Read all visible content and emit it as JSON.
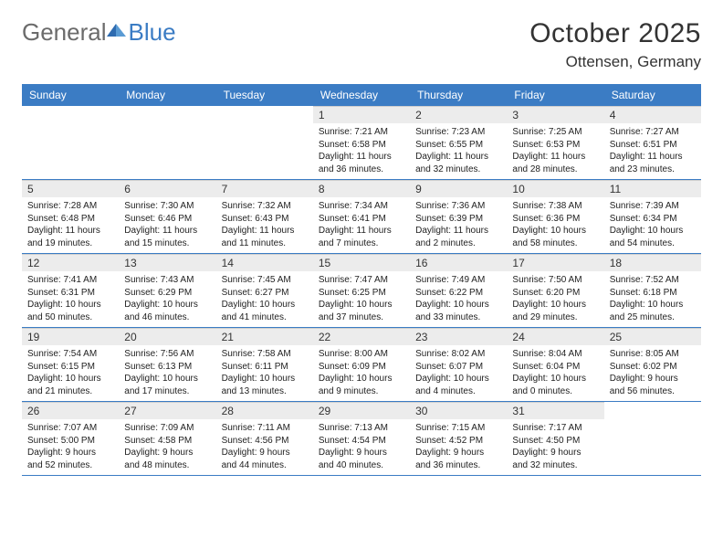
{
  "logo": {
    "general": "General",
    "blue": "Blue"
  },
  "title": "October 2025",
  "location": "Ottensen, Germany",
  "weekdays": [
    "Sunday",
    "Monday",
    "Tuesday",
    "Wednesday",
    "Thursday",
    "Friday",
    "Saturday"
  ],
  "colors": {
    "header_bg": "#3b7cc4",
    "header_text": "#ffffff",
    "daynum_bg": "#ececec",
    "text": "#333333",
    "body_text": "#222222",
    "border": "#3b7cc4"
  },
  "weeks": [
    [
      null,
      null,
      null,
      {
        "d": "1",
        "sr": "7:21 AM",
        "ss": "6:58 PM",
        "dl": "11 hours and 36 minutes."
      },
      {
        "d": "2",
        "sr": "7:23 AM",
        "ss": "6:55 PM",
        "dl": "11 hours and 32 minutes."
      },
      {
        "d": "3",
        "sr": "7:25 AM",
        "ss": "6:53 PM",
        "dl": "11 hours and 28 minutes."
      },
      {
        "d": "4",
        "sr": "7:27 AM",
        "ss": "6:51 PM",
        "dl": "11 hours and 23 minutes."
      }
    ],
    [
      {
        "d": "5",
        "sr": "7:28 AM",
        "ss": "6:48 PM",
        "dl": "11 hours and 19 minutes."
      },
      {
        "d": "6",
        "sr": "7:30 AM",
        "ss": "6:46 PM",
        "dl": "11 hours and 15 minutes."
      },
      {
        "d": "7",
        "sr": "7:32 AM",
        "ss": "6:43 PM",
        "dl": "11 hours and 11 minutes."
      },
      {
        "d": "8",
        "sr": "7:34 AM",
        "ss": "6:41 PM",
        "dl": "11 hours and 7 minutes."
      },
      {
        "d": "9",
        "sr": "7:36 AM",
        "ss": "6:39 PM",
        "dl": "11 hours and 2 minutes."
      },
      {
        "d": "10",
        "sr": "7:38 AM",
        "ss": "6:36 PM",
        "dl": "10 hours and 58 minutes."
      },
      {
        "d": "11",
        "sr": "7:39 AM",
        "ss": "6:34 PM",
        "dl": "10 hours and 54 minutes."
      }
    ],
    [
      {
        "d": "12",
        "sr": "7:41 AM",
        "ss": "6:31 PM",
        "dl": "10 hours and 50 minutes."
      },
      {
        "d": "13",
        "sr": "7:43 AM",
        "ss": "6:29 PM",
        "dl": "10 hours and 46 minutes."
      },
      {
        "d": "14",
        "sr": "7:45 AM",
        "ss": "6:27 PM",
        "dl": "10 hours and 41 minutes."
      },
      {
        "d": "15",
        "sr": "7:47 AM",
        "ss": "6:25 PM",
        "dl": "10 hours and 37 minutes."
      },
      {
        "d": "16",
        "sr": "7:49 AM",
        "ss": "6:22 PM",
        "dl": "10 hours and 33 minutes."
      },
      {
        "d": "17",
        "sr": "7:50 AM",
        "ss": "6:20 PM",
        "dl": "10 hours and 29 minutes."
      },
      {
        "d": "18",
        "sr": "7:52 AM",
        "ss": "6:18 PM",
        "dl": "10 hours and 25 minutes."
      }
    ],
    [
      {
        "d": "19",
        "sr": "7:54 AM",
        "ss": "6:15 PM",
        "dl": "10 hours and 21 minutes."
      },
      {
        "d": "20",
        "sr": "7:56 AM",
        "ss": "6:13 PM",
        "dl": "10 hours and 17 minutes."
      },
      {
        "d": "21",
        "sr": "7:58 AM",
        "ss": "6:11 PM",
        "dl": "10 hours and 13 minutes."
      },
      {
        "d": "22",
        "sr": "8:00 AM",
        "ss": "6:09 PM",
        "dl": "10 hours and 9 minutes."
      },
      {
        "d": "23",
        "sr": "8:02 AM",
        "ss": "6:07 PM",
        "dl": "10 hours and 4 minutes."
      },
      {
        "d": "24",
        "sr": "8:04 AM",
        "ss": "6:04 PM",
        "dl": "10 hours and 0 minutes."
      },
      {
        "d": "25",
        "sr": "8:05 AM",
        "ss": "6:02 PM",
        "dl": "9 hours and 56 minutes."
      }
    ],
    [
      {
        "d": "26",
        "sr": "7:07 AM",
        "ss": "5:00 PM",
        "dl": "9 hours and 52 minutes."
      },
      {
        "d": "27",
        "sr": "7:09 AM",
        "ss": "4:58 PM",
        "dl": "9 hours and 48 minutes."
      },
      {
        "d": "28",
        "sr": "7:11 AM",
        "ss": "4:56 PM",
        "dl": "9 hours and 44 minutes."
      },
      {
        "d": "29",
        "sr": "7:13 AM",
        "ss": "4:54 PM",
        "dl": "9 hours and 40 minutes."
      },
      {
        "d": "30",
        "sr": "7:15 AM",
        "ss": "4:52 PM",
        "dl": "9 hours and 36 minutes."
      },
      {
        "d": "31",
        "sr": "7:17 AM",
        "ss": "4:50 PM",
        "dl": "9 hours and 32 minutes."
      },
      null
    ]
  ],
  "labels": {
    "sunrise": "Sunrise:",
    "sunset": "Sunset:",
    "daylight": "Daylight:"
  }
}
